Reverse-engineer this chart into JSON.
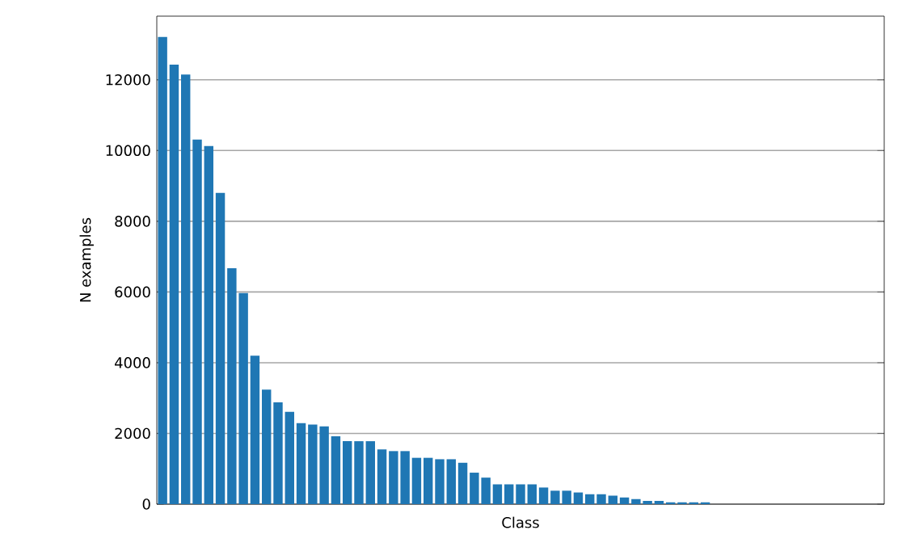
{
  "chart_data": {
    "type": "bar",
    "xlabel": "Class",
    "ylabel": "N examples",
    "categories": [
      null,
      null,
      null,
      null,
      null,
      null,
      null,
      null,
      null,
      null,
      null,
      null,
      null,
      null,
      null,
      null,
      null,
      null,
      null,
      null,
      null,
      null,
      null,
      null,
      null,
      null,
      null,
      null,
      null,
      null,
      null,
      null,
      null,
      null,
      null,
      null,
      null,
      null,
      null,
      null,
      null,
      null,
      null,
      null,
      null,
      null,
      null,
      null,
      null,
      null,
      null,
      null,
      null,
      null,
      null,
      null,
      null,
      null,
      null,
      null,
      null,
      null,
      null
    ],
    "values": [
      13210,
      12430,
      12150,
      10310,
      10130,
      8800,
      6670,
      5970,
      4200,
      3240,
      2880,
      2610,
      2290,
      2250,
      2200,
      1920,
      1780,
      1780,
      1780,
      1550,
      1500,
      1500,
      1310,
      1310,
      1270,
      1270,
      1170,
      890,
      750,
      560,
      560,
      560,
      560,
      470,
      380,
      380,
      330,
      280,
      280,
      240,
      190,
      140,
      90,
      90,
      50,
      50,
      50,
      50,
      null,
      null,
      null,
      null,
      null,
      null,
      null,
      null,
      null,
      null,
      null,
      null,
      null,
      null,
      null
    ],
    "color": "#1f77b4",
    "ylim": [
      0,
      13800
    ],
    "yticks": [
      0,
      2000,
      4000,
      6000,
      8000,
      10000,
      12000
    ],
    "grid": "y"
  }
}
